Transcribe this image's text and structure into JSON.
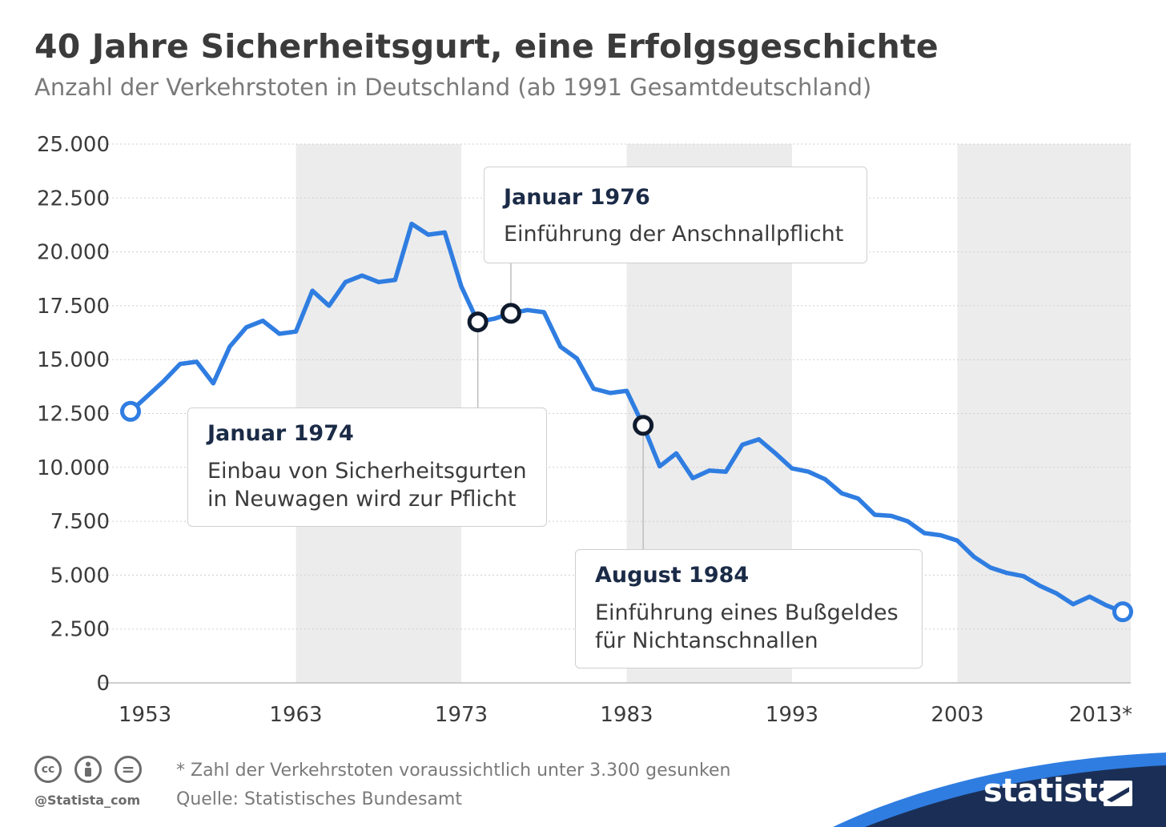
{
  "header": {
    "title": "40 Jahre Sicherheitsgurt, eine Erfolgsgeschichte",
    "subtitle": "Anzahl der Verkehrstoten in Deutschland (ab 1991 Gesamtdeutschland)"
  },
  "chart_data": {
    "type": "line",
    "title": "40 Jahre Sicherheitsgurt, eine Erfolgsgeschichte",
    "subtitle": "Anzahl der Verkehrstoten in Deutschland (ab 1991 Gesamtdeutschland)",
    "xlim": [
      1953,
      2013
    ],
    "ylim": [
      0,
      25000
    ],
    "y_ticks": [
      "0",
      "2.500",
      "5.000",
      "7.500",
      "10.000",
      "12.500",
      "15.000",
      "17.500",
      "20.000",
      "22.500",
      "25.000"
    ],
    "y_tick_values": [
      0,
      2500,
      5000,
      7500,
      10000,
      12500,
      15000,
      17500,
      20000,
      22500,
      25000
    ],
    "x_ticks": [
      "1953",
      "1963",
      "1973",
      "1983",
      "1993",
      "2003",
      "2013*"
    ],
    "x_tick_values": [
      1953,
      1963,
      1973,
      1983,
      1993,
      2003,
      2013
    ],
    "grid": true,
    "shaded_decades": [
      [
        1963,
        1973
      ],
      [
        1983,
        1993
      ],
      [
        2003,
        2014
      ]
    ],
    "series_color": "#2f7de1",
    "x": [
      1953,
      1954,
      1955,
      1956,
      1957,
      1958,
      1959,
      1960,
      1961,
      1962,
      1963,
      1964,
      1965,
      1966,
      1967,
      1968,
      1969,
      1970,
      1971,
      1972,
      1973,
      1974,
      1975,
      1976,
      1977,
      1978,
      1979,
      1980,
      1981,
      1982,
      1983,
      1984,
      1985,
      1986,
      1987,
      1988,
      1989,
      1990,
      1991,
      1992,
      1993,
      1994,
      1995,
      1996,
      1997,
      1998,
      1999,
      2000,
      2001,
      2002,
      2003,
      2004,
      2005,
      2006,
      2007,
      2008,
      2009,
      2010,
      2011,
      2012,
      2013
    ],
    "y": [
      12600,
      13300,
      14000,
      14800,
      14900,
      13900,
      15600,
      16500,
      16800,
      16200,
      16300,
      18200,
      17500,
      18600,
      18900,
      18600,
      18700,
      21300,
      20800,
      20900,
      18400,
      16750,
      16900,
      17150,
      17300,
      17200,
      15600,
      15050,
      13650,
      13450,
      13550,
      11950,
      10050,
      10650,
      9500,
      9850,
      9800,
      11050,
      11300,
      10650,
      9950,
      9800,
      9450,
      8800,
      8550,
      7800,
      7750,
      7500,
      6950,
      6850,
      6600,
      5850,
      5350,
      5100,
      4950,
      4500,
      4150,
      3650,
      4000,
      3600,
      3300
    ],
    "highlighted_points": [
      {
        "x": 1953,
        "y": 12600,
        "style": "blue"
      },
      {
        "x": 1974,
        "y": 16750,
        "style": "dark"
      },
      {
        "x": 1976,
        "y": 17150,
        "style": "dark"
      },
      {
        "x": 1984,
        "y": 11950,
        "style": "dark"
      },
      {
        "x": 2013,
        "y": 3300,
        "style": "blue"
      }
    ],
    "annotations": [
      {
        "year": 1976,
        "title": "Januar 1976",
        "lines": [
          "Einführung der Anschnallpflicht"
        ]
      },
      {
        "year": 1974,
        "title": "Januar 1974",
        "lines": [
          "Einbau von Sicherheitsgurten",
          "in Neuwagen wird zur Pflicht"
        ]
      },
      {
        "year": 1984,
        "title": "August 1984",
        "lines": [
          "Einführung eines Bußgeldes",
          "für Nichtanschnallen"
        ]
      }
    ]
  },
  "footer": {
    "footnote": "* Zahl der Verkehrstoten voraussichtlich unter 3.300 gesunken",
    "source": "Quelle: Statistisches Bundesamt",
    "handle": "@Statista_com",
    "brand": "statista",
    "license_icons": [
      "cc-icon",
      "by-person-icon",
      "nd-equals-icon"
    ],
    "license_texts": [
      "cc",
      "="
    ],
    "brand_color": "#1b2f56",
    "swoosh_color": "#2f7de1"
  }
}
